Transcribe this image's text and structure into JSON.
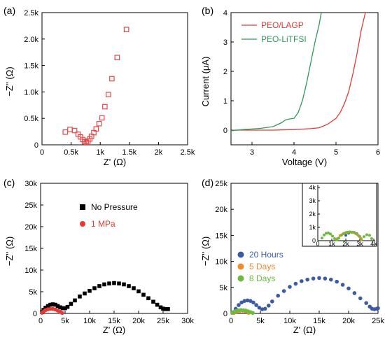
{
  "chart_data": [
    {
      "panel_label": "(a)",
      "type": "scatter",
      "xlabel": "Z' (Ω)",
      "ylabel": "−Z'' (Ω)",
      "xlim": [
        0,
        2500
      ],
      "ylim": [
        0,
        2500
      ],
      "xticks": [
        0,
        500,
        1000,
        1500,
        2000,
        2500
      ],
      "xtick_labels": [
        "0",
        "0.5k",
        "1k",
        "1.5k",
        "2k",
        "2.5k"
      ],
      "yticks": [
        0,
        500,
        1000,
        1500,
        2000,
        2500
      ],
      "ytick_labels": [
        "0",
        "0.5k",
        "1.0k",
        "1.5k",
        "2.0k",
        "2.5k"
      ],
      "grid": false,
      "series": [
        {
          "color": "#e8484a",
          "marker": "square-open",
          "x": [
            400,
            480,
            560,
            620,
            660,
            700,
            730,
            760,
            790,
            820,
            850,
            890,
            930,
            980,
            1030,
            1080,
            1140,
            1200,
            1290,
            1450
          ],
          "y": [
            240,
            290,
            270,
            200,
            150,
            100,
            60,
            50,
            70,
            110,
            160,
            230,
            300,
            400,
            510,
            720,
            950,
            1250,
            1650,
            2180
          ]
        }
      ]
    },
    {
      "panel_label": "(b)",
      "type": "line",
      "xlabel": "Voltage (V)",
      "ylabel": "Current (μA)",
      "xlim": [
        2.5,
        6
      ],
      "ylim": [
        -0.5,
        4
      ],
      "xticks": [
        3,
        4,
        5,
        6
      ],
      "xtick_labels": [
        "3",
        "4",
        "5",
        "6"
      ],
      "yticks": [
        0,
        1,
        2,
        3,
        4
      ],
      "ytick_labels": [
        "0",
        "1",
        "2",
        "3",
        "4"
      ],
      "grid": false,
      "legend": "top-left",
      "series": [
        {
          "name": "PEO/LAGP",
          "color": "#e53935",
          "x": [
            2.5,
            2.6,
            3.0,
            3.5,
            4.0,
            4.4,
            4.6,
            4.8,
            4.9,
            5.0,
            5.1,
            5.2,
            5.3,
            5.4,
            5.5,
            5.6,
            5.7
          ],
          "y": [
            -0.02,
            0.0,
            0.0,
            0.0,
            0.02,
            0.05,
            0.08,
            0.2,
            0.3,
            0.4,
            0.6,
            0.9,
            1.3,
            1.9,
            2.6,
            3.4,
            4.0
          ]
        },
        {
          "name": "PEO-LiTFSI",
          "color": "#2e9a58",
          "x": [
            2.5,
            2.8,
            3.2,
            3.5,
            3.7,
            3.8,
            3.9,
            4.0,
            4.1,
            4.2,
            4.3,
            4.4,
            4.5,
            4.6,
            4.65
          ],
          "y": [
            -0.02,
            0.02,
            0.06,
            0.12,
            0.25,
            0.35,
            0.38,
            0.4,
            0.6,
            1.0,
            1.6,
            2.3,
            3.0,
            3.6,
            4.0
          ]
        }
      ]
    },
    {
      "panel_label": "(c)",
      "type": "scatter",
      "xlabel": "Z' (Ω)",
      "ylabel": "−Z'' (Ω)",
      "xlim": [
        0,
        30000
      ],
      "ylim": [
        0,
        30000
      ],
      "xticks": [
        0,
        5000,
        10000,
        15000,
        20000,
        25000,
        30000
      ],
      "xtick_labels": [
        "0",
        "5k",
        "10k",
        "15k",
        "20k",
        "25k",
        "30k"
      ],
      "yticks": [
        0,
        5000,
        10000,
        15000,
        20000,
        25000,
        30000
      ],
      "ytick_labels": [
        "0",
        "5k",
        "10k",
        "15k",
        "20k",
        "25k",
        "30k"
      ],
      "grid": false,
      "legend": "center-left",
      "series": [
        {
          "name": "No Pressure",
          "color": "#000000",
          "marker": "square",
          "x": [
            300,
            600,
            1000,
            1500,
            2000,
            2500,
            3000,
            3500,
            4000,
            4500,
            5000,
            5500,
            6200,
            7000,
            8000,
            9000,
            10000,
            11000,
            12000,
            13000,
            14000,
            15000,
            16000,
            17000,
            18000,
            19000,
            20000,
            21000,
            22000,
            23000,
            23800,
            24500,
            25000,
            25500,
            26000
          ],
          "y": [
            300,
            800,
            1300,
            1700,
            2000,
            2100,
            2000,
            1700,
            1400,
            1200,
            1200,
            1500,
            2200,
            3000,
            3900,
            4600,
            5200,
            5800,
            6300,
            6700,
            6900,
            7000,
            6900,
            6700,
            6300,
            5800,
            5100,
            4300,
            3500,
            2700,
            2000,
            1400,
            1100,
            1000,
            1000
          ]
        },
        {
          "name": "1 MPa",
          "color": "#e53935",
          "marker": "circle",
          "x": [
            300,
            600,
            1000,
            1500,
            2000,
            2500,
            3000,
            3500,
            4000,
            4400
          ],
          "y": [
            150,
            450,
            750,
            950,
            1050,
            1050,
            900,
            650,
            350,
            100
          ]
        }
      ]
    },
    {
      "panel_label": "(d)",
      "type": "scatter",
      "xlabel": "Z' (Ω)",
      "ylabel": "−Z'' (Ω)",
      "xlim": [
        0,
        25000
      ],
      "ylim": [
        0,
        25000
      ],
      "xticks": [
        0,
        5000,
        10000,
        15000,
        20000,
        25000
      ],
      "xtick_labels": [
        "0",
        "5k",
        "10k",
        "15k",
        "20k",
        "25k"
      ],
      "yticks": [
        0,
        5000,
        10000,
        15000,
        20000,
        25000
      ],
      "ytick_labels": [
        "0",
        "5k",
        "10k",
        "15k",
        "20k",
        "25k"
      ],
      "grid": false,
      "legend": "center-left",
      "series": [
        {
          "name": "20 Hours",
          "color": "#3b5ba8",
          "marker": "circle",
          "x": [
            300,
            800,
            1300,
            1800,
            2300,
            2800,
            3300,
            3800,
            4300,
            4800,
            5300,
            5800,
            6400,
            7000,
            8000,
            9000,
            10000,
            11000,
            12000,
            13000,
            14000,
            15000,
            16000,
            17000,
            18000,
            19000,
            20000,
            21000,
            22000,
            23000,
            23600,
            24000,
            24400,
            24800,
            25000
          ],
          "y": [
            200,
            900,
            1600,
            2100,
            2400,
            2500,
            2400,
            2100,
            1600,
            1100,
            800,
            900,
            1500,
            2300,
            3400,
            4300,
            5100,
            5700,
            6200,
            6500,
            6700,
            6800,
            6700,
            6500,
            6100,
            5500,
            4800,
            3900,
            2900,
            2000,
            1300,
            900,
            800,
            900,
            1000
          ]
        },
        {
          "name": "5 Days",
          "color": "#f08a2c",
          "marker": "circle",
          "x": [
            500,
            1000,
            1500,
            2000,
            2500,
            3000
          ],
          "y": [
            100,
            350,
            500,
            520,
            400,
            100
          ]
        },
        {
          "name": "8 Days",
          "color": "#6dbb3c",
          "marker": "circle",
          "x": [
            200,
            500,
            900,
            1300,
            1700,
            2100,
            2500,
            2900,
            3300,
            3700
          ],
          "y": [
            100,
            300,
            500,
            600,
            650,
            620,
            550,
            400,
            250,
            100
          ]
        }
      ],
      "inset": {
        "xlim": [
          0,
          4000
        ],
        "ylim": [
          0,
          4000
        ],
        "xticks": [
          0,
          1000,
          2000,
          3000,
          4000
        ],
        "xtick_labels": [
          "0",
          "1k",
          "2k",
          "3k",
          "4k"
        ],
        "yticks": [
          0,
          1000,
          2000,
          3000,
          4000
        ],
        "ytick_labels": [
          "0",
          "1k",
          "2k",
          "3k",
          "4k"
        ],
        "series": [
          {
            "color": "#3b5ba8",
            "x": [
              2000,
              2200,
              2400,
              2600,
              2800,
              3000
            ],
            "y": [
              400,
              560,
              630,
              620,
              520,
              300
            ]
          },
          {
            "color": "#f08a2c",
            "x": [
              1400,
              1600,
              1800,
              2000,
              2200,
              2400,
              2600,
              2800,
              3000,
              3100
            ],
            "y": [
              150,
              380,
              520,
              600,
              640,
              640,
              600,
              480,
              280,
              80
            ]
          },
          {
            "color": "#6dbb3c",
            "x": [
              300,
              450,
              600,
              750,
              900,
              1050,
              1200,
              1350,
              1500,
              1700,
              1900,
              2100,
              2300,
              2500,
              2700,
              2900,
              3100,
              3300,
              3500,
              3700,
              3850
            ],
            "y": [
              200,
              430,
              560,
              580,
              500,
              340,
              160,
              60,
              200,
              420,
              560,
              640,
              660,
              630,
              540,
              380,
              150,
              300,
              450,
              400,
              150
            ]
          }
        ]
      }
    }
  ]
}
